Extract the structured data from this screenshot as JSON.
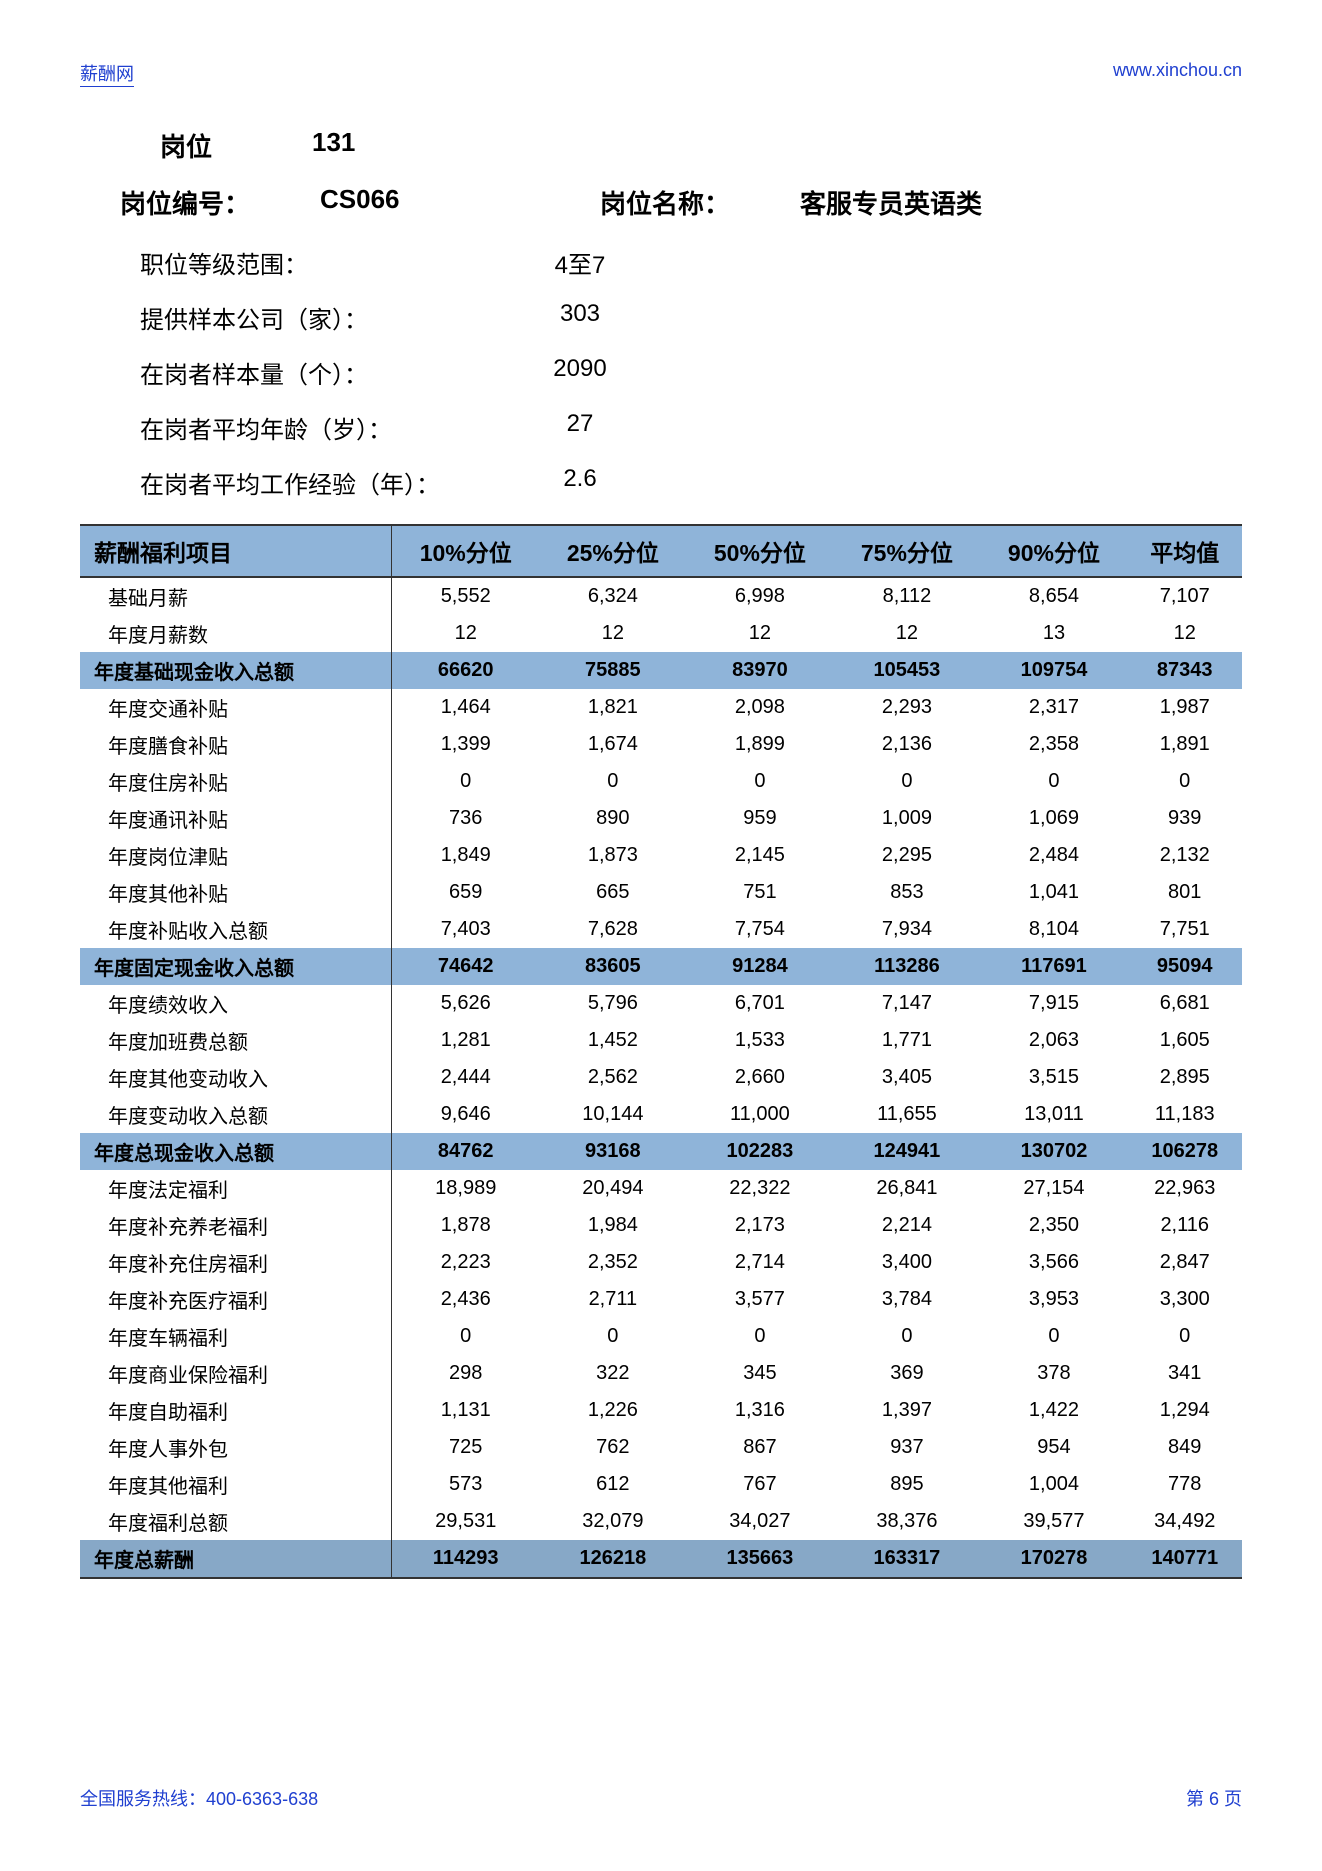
{
  "header": {
    "site_name": "薪酬网",
    "site_url": "www.xinchou.cn"
  },
  "position": {
    "label_position": "岗位",
    "position_num": "131",
    "label_code": "岗位编号：",
    "code": "CS066",
    "label_name": "岗位名称：",
    "name": "客服专员英语类"
  },
  "info": [
    {
      "label": "职位等级范围：",
      "value": "4至7"
    },
    {
      "label": "提供样本公司（家）：",
      "value": "303"
    },
    {
      "label": "在岗者样本量（个）：",
      "value": "2090"
    },
    {
      "label": "在岗者平均年龄（岁）：",
      "value": "27"
    },
    {
      "label": "在岗者平均工作经验（年）：",
      "value": "2.6"
    }
  ],
  "table": {
    "columns": [
      "薪酬福利项目",
      "10%分位",
      "25%分位",
      "50%分位",
      "75%分位",
      "90%分位",
      "平均值"
    ],
    "rows": [
      {
        "type": "data",
        "label": "基础月薪",
        "values": [
          "5,552",
          "6,324",
          "6,998",
          "8,112",
          "8,654",
          "7,107"
        ]
      },
      {
        "type": "data",
        "label": "年度月薪数",
        "values": [
          "12",
          "12",
          "12",
          "12",
          "13",
          "12"
        ]
      },
      {
        "type": "subtotal",
        "label": "年度基础现金收入总额",
        "values": [
          "66620",
          "75885",
          "83970",
          "105453",
          "109754",
          "87343"
        ]
      },
      {
        "type": "data",
        "label": "年度交通补贴",
        "values": [
          "1,464",
          "1,821",
          "2,098",
          "2,293",
          "2,317",
          "1,987"
        ]
      },
      {
        "type": "data",
        "label": "年度膳食补贴",
        "values": [
          "1,399",
          "1,674",
          "1,899",
          "2,136",
          "2,358",
          "1,891"
        ]
      },
      {
        "type": "data",
        "label": "年度住房补贴",
        "values": [
          "0",
          "0",
          "0",
          "0",
          "0",
          "0"
        ]
      },
      {
        "type": "data",
        "label": "年度通讯补贴",
        "values": [
          "736",
          "890",
          "959",
          "1,009",
          "1,069",
          "939"
        ]
      },
      {
        "type": "data",
        "label": "年度岗位津贴",
        "values": [
          "1,849",
          "1,873",
          "2,145",
          "2,295",
          "2,484",
          "2,132"
        ]
      },
      {
        "type": "data",
        "label": "年度其他补贴",
        "values": [
          "659",
          "665",
          "751",
          "853",
          "1,041",
          "801"
        ]
      },
      {
        "type": "data",
        "label": "年度补贴收入总额",
        "values": [
          "7,403",
          "7,628",
          "7,754",
          "7,934",
          "8,104",
          "7,751"
        ]
      },
      {
        "type": "subtotal",
        "label": "年度固定现金收入总额",
        "values": [
          "74642",
          "83605",
          "91284",
          "113286",
          "117691",
          "95094"
        ]
      },
      {
        "type": "data",
        "label": "年度绩效收入",
        "values": [
          "5,626",
          "5,796",
          "6,701",
          "7,147",
          "7,915",
          "6,681"
        ]
      },
      {
        "type": "data",
        "label": "年度加班费总额",
        "values": [
          "1,281",
          "1,452",
          "1,533",
          "1,771",
          "2,063",
          "1,605"
        ]
      },
      {
        "type": "data",
        "label": "年度其他变动收入",
        "values": [
          "2,444",
          "2,562",
          "2,660",
          "3,405",
          "3,515",
          "2,895"
        ]
      },
      {
        "type": "data",
        "label": "年度变动收入总额",
        "values": [
          "9,646",
          "10,144",
          "11,000",
          "11,655",
          "13,011",
          "11,183"
        ]
      },
      {
        "type": "subtotal",
        "label": "年度总现金收入总额",
        "values": [
          "84762",
          "93168",
          "102283",
          "124941",
          "130702",
          "106278"
        ]
      },
      {
        "type": "data",
        "label": "年度法定福利",
        "values": [
          "18,989",
          "20,494",
          "22,322",
          "26,841",
          "27,154",
          "22,963"
        ]
      },
      {
        "type": "data",
        "label": "年度补充养老福利",
        "values": [
          "1,878",
          "1,984",
          "2,173",
          "2,214",
          "2,350",
          "2,116"
        ]
      },
      {
        "type": "data",
        "label": "年度补充住房福利",
        "values": [
          "2,223",
          "2,352",
          "2,714",
          "3,400",
          "3,566",
          "2,847"
        ]
      },
      {
        "type": "data",
        "label": "年度补充医疗福利",
        "values": [
          "2,436",
          "2,711",
          "3,577",
          "3,784",
          "3,953",
          "3,300"
        ]
      },
      {
        "type": "data",
        "label": "年度车辆福利",
        "values": [
          "0",
          "0",
          "0",
          "0",
          "0",
          "0"
        ]
      },
      {
        "type": "data",
        "label": "年度商业保险福利",
        "values": [
          "298",
          "322",
          "345",
          "369",
          "378",
          "341"
        ]
      },
      {
        "type": "data",
        "label": "年度自助福利",
        "values": [
          "1,131",
          "1,226",
          "1,316",
          "1,397",
          "1,422",
          "1,294"
        ]
      },
      {
        "type": "data",
        "label": "年度人事外包",
        "values": [
          "725",
          "762",
          "867",
          "937",
          "954",
          "849"
        ]
      },
      {
        "type": "data",
        "label": "年度其他福利",
        "values": [
          "573",
          "612",
          "767",
          "895",
          "1,004",
          "778"
        ]
      },
      {
        "type": "data",
        "label": "年度福利总额",
        "values": [
          "29,531",
          "32,079",
          "34,027",
          "38,376",
          "39,577",
          "34,492"
        ]
      },
      {
        "type": "grand-total",
        "label": "年度总薪酬",
        "values": [
          "114293",
          "126218",
          "135663",
          "163317",
          "170278",
          "140771"
        ]
      }
    ]
  },
  "footer": {
    "hotline": "全国服务热线：400-6363-638",
    "page": "第 6 页"
  }
}
